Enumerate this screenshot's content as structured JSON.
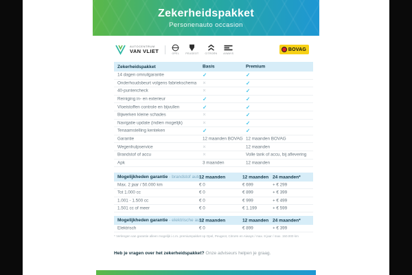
{
  "header": {
    "title": "Zekerheidspakket",
    "subtitle": "Personenauto occasion"
  },
  "branding": {
    "dealer_line1": "AUTOCENTRUM",
    "dealer_line2": "VAN VLIET",
    "brands": [
      {
        "name": "Opel"
      },
      {
        "name": "Peugeot"
      },
      {
        "name": "Citroën"
      },
      {
        "name": "Aiways"
      }
    ],
    "bovag_label": "BOVAG"
  },
  "package_table": {
    "col_label": "Zekerheidspakket",
    "col_basis": "Basis",
    "col_premium": "Premium",
    "rows": [
      {
        "label": "14 dagen omruilgarantie",
        "basis": "check",
        "premium": "check"
      },
      {
        "label": "Onderhoudsbeurt volgens fabriekschema",
        "basis": "cross",
        "premium": "check"
      },
      {
        "label": "40-puntencheck",
        "basis": "cross",
        "premium": "check"
      },
      {
        "label": "Reiniging in- en exterieur",
        "basis": "check",
        "premium": "check"
      },
      {
        "label": "Vloeistoffen controle en bijvullen",
        "basis": "check",
        "premium": "check"
      },
      {
        "label": "Bijwerken kleine schades",
        "basis": "cross",
        "premium": "check"
      },
      {
        "label": "Navigatie update (indien mogelijk)",
        "basis": "cross",
        "premium": "check"
      },
      {
        "label": "Tenaamstelling kenteken",
        "basis": "check",
        "premium": "check"
      },
      {
        "label": "Garantie",
        "basis": "12 maanden BOVAG",
        "premium": "12 maanden BOVAG"
      },
      {
        "label": "Wegenhulpservice",
        "basis": "cross",
        "premium": "12 maanden"
      },
      {
        "label": "Brandstof of accu",
        "basis": "cross",
        "premium": "Volle tank of accu, bij aflevering"
      },
      {
        "label": "Apk",
        "basis": "3 maanden",
        "premium": "12 maanden"
      }
    ]
  },
  "fuel_table": {
    "title": "Mogelijkheden garantie",
    "title_suffix": " - brandstof auto",
    "cols": [
      "12 maanden",
      "12 maanden",
      "24 maanden*"
    ],
    "rows": [
      {
        "label": "Max. 2 jaar / 50.000 km",
        "values": [
          "€ 0",
          "€ 699",
          "+ € 299"
        ]
      },
      {
        "label": "Tot 1.000 cc",
        "values": [
          "€ 0",
          "€ 899",
          "+ € 399"
        ]
      },
      {
        "label": "1.001 - 1.500 cc",
        "values": [
          "€ 0",
          "€ 999",
          "+ € 499"
        ]
      },
      {
        "label": "1.501 cc of meer",
        "values": [
          "€ 0",
          "€ 1.199",
          "+ € 599"
        ]
      }
    ]
  },
  "electric_table": {
    "title": "Mogelijkheden garantie",
    "title_suffix": " - elektrische auto",
    "cols": [
      "12 maanden",
      "12 maanden",
      "24 maanden*"
    ],
    "rows": [
      {
        "label": "Elektrisch",
        "values": [
          "€ 0",
          "€ 899",
          "+ € 399"
        ]
      }
    ]
  },
  "footnote": "* Verlengen van garantie alleen mogelijk i.c.m. premiumpakket op Opel, Peugeot, Citroën en Aiways / max. 8 jaar / max. 150.000 km",
  "question": {
    "bold": "Heb je vragen over het zekerheidspakket?",
    "rest": "Onze adviseurs helpen je graag."
  },
  "colors": {
    "gradient_start": "#5cb847",
    "gradient_mid": "#27a99e",
    "gradient_end": "#1e97d4",
    "check": "#3cc1e9",
    "cross": "#c8ced3",
    "table_header_bg": "#d7edf8",
    "bovag_yellow": "#f7d117",
    "bovag_red": "#d8232a"
  }
}
